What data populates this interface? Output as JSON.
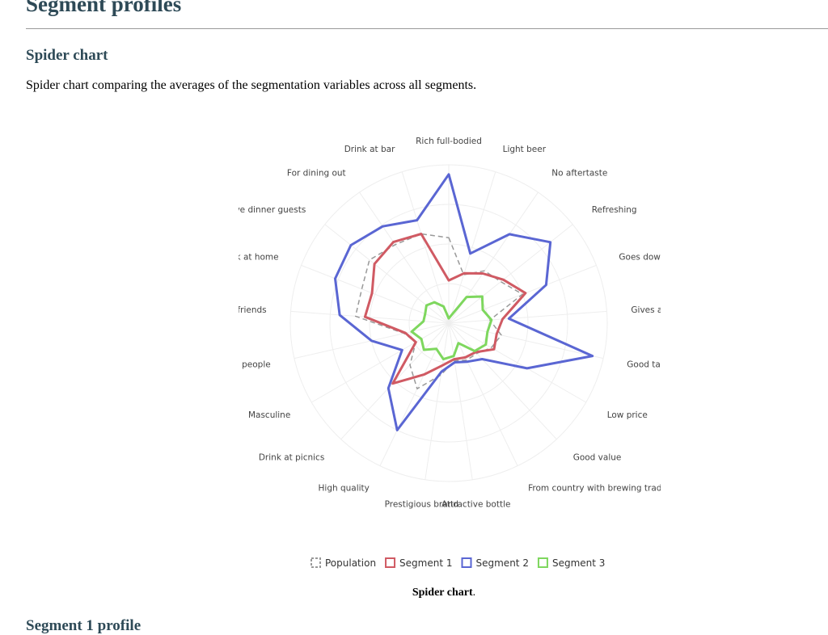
{
  "page": {
    "title": "Segment profiles",
    "section_heading": "Spider chart",
    "section_description": "Spider chart comparing the averages of the segmentation variables across all segments.",
    "caption_bold": "Spider chart",
    "caption_rest": ".",
    "next_heading": "Segment 1 profile"
  },
  "colors": {
    "heading": "#2e4a57",
    "population": "#999999",
    "segment1": "#d05a63",
    "segment2": "#5a66d3",
    "segment3": "#7ed75e",
    "grid": "#eeeeee"
  },
  "chart_data": {
    "type": "radar",
    "categories": [
      "Rich full-bodied",
      "Light beer",
      "No aftertaste",
      "Refreshing",
      "Goes down easy",
      "Gives a buzz",
      "Good taste",
      "Low price",
      "Good value",
      "From country with brewing tradition",
      "Attractive bottle",
      "Prestigious brand",
      "High quality",
      "Drink at picnics",
      "Masculine",
      "Appeals to young people",
      "Drink with friends",
      "Drink at home",
      "To serve dinner guests",
      "For dining out",
      "Drink at bar"
    ],
    "rmax": 1.0,
    "grid": true,
    "legend_position": "bottom",
    "series": [
      {
        "name": "Population",
        "color": "#999999",
        "dash": true,
        "values": [
          0.54,
          0.32,
          0.4,
          0.42,
          0.5,
          0.26,
          0.34,
          0.31,
          0.26,
          0.26,
          0.24,
          0.33,
          0.46,
          0.36,
          0.24,
          0.29,
          0.59,
          0.59,
          0.64,
          0.6,
          0.59
        ]
      },
      {
        "name": "Segment 1",
        "color": "#d05a63",
        "values": [
          0.27,
          0.33,
          0.38,
          0.44,
          0.52,
          0.34,
          0.31,
          0.33,
          0.25,
          0.24,
          0.23,
          0.27,
          0.36,
          0.52,
          0.24,
          0.28,
          0.53,
          0.52,
          0.6,
          0.62,
          0.59
        ]
      },
      {
        "name": "Segment 2",
        "color": "#5a66d3",
        "values": [
          0.94,
          0.46,
          0.68,
          0.82,
          0.66,
          0.38,
          0.93,
          0.57,
          0.31,
          0.27,
          0.25,
          0.31,
          0.75,
          0.56,
          0.34,
          0.5,
          0.69,
          0.77,
          0.79,
          0.74,
          0.68
        ]
      },
      {
        "name": "Segment 3",
        "color": "#7ed75e",
        "values": [
          0.03,
          0.05,
          0.2,
          0.27,
          0.23,
          0.27,
          0.25,
          0.27,
          0.24,
          0.14,
          0.21,
          0.23,
          0.18,
          0.23,
          0.2,
          0.24,
          0.16,
          0.16,
          0.18,
          0.16,
          0.11
        ]
      }
    ]
  }
}
